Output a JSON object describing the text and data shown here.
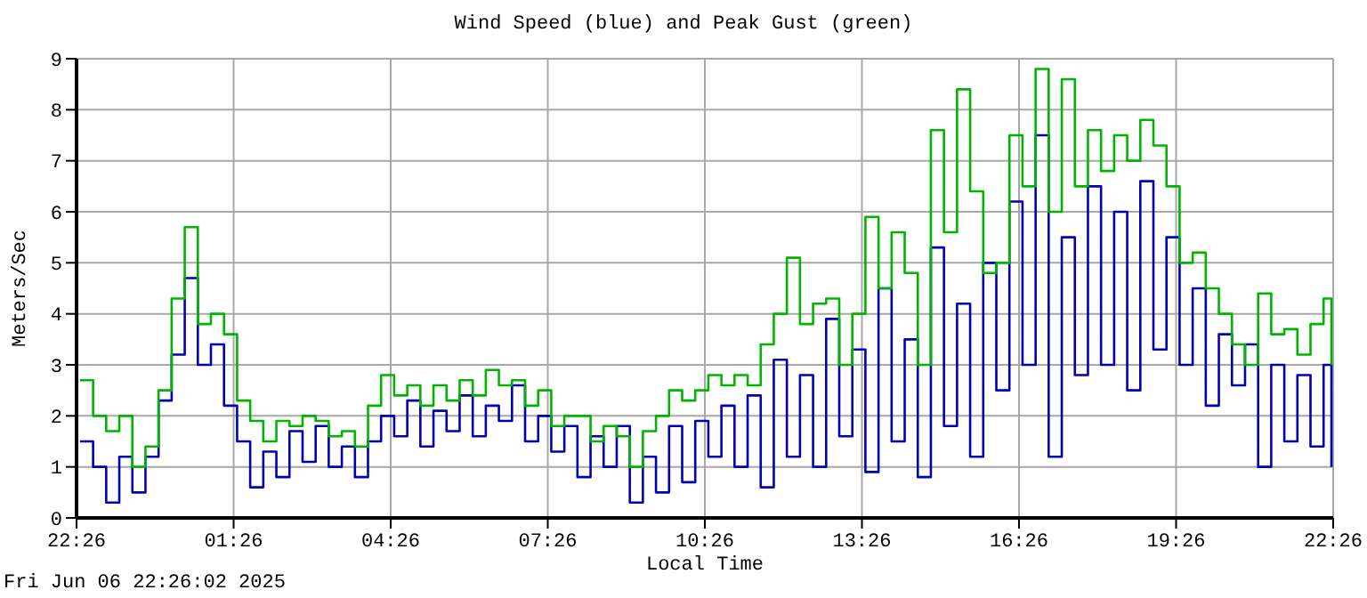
{
  "chart_data": {
    "type": "step",
    "title": "Wind Speed (blue) and Peak Gust (green)",
    "xlabel": "Local Time",
    "ylabel": "Meters/Sec",
    "annotations": [
      "Fri Jun 06 22:26:02 2025"
    ],
    "x": [
      "2025-06-05T22:30",
      "2025-06-05T22:45",
      "2025-06-05T23:00",
      "2025-06-05T23:15",
      "2025-06-05T23:30",
      "2025-06-05T23:45",
      "2025-06-06T00:00",
      "2025-06-06T00:15",
      "2025-06-06T00:30",
      "2025-06-06T00:45",
      "2025-06-06T01:00",
      "2025-06-06T01:15",
      "2025-06-06T01:30",
      "2025-06-06T01:45",
      "2025-06-06T02:00",
      "2025-06-06T02:15",
      "2025-06-06T02:30",
      "2025-06-06T02:45",
      "2025-06-06T03:00",
      "2025-06-06T03:15",
      "2025-06-06T03:30",
      "2025-06-06T03:45",
      "2025-06-06T04:00",
      "2025-06-06T04:15",
      "2025-06-06T04:30",
      "2025-06-06T04:45",
      "2025-06-06T05:00",
      "2025-06-06T05:15",
      "2025-06-06T05:30",
      "2025-06-06T05:45",
      "2025-06-06T06:00",
      "2025-06-06T06:15",
      "2025-06-06T06:30",
      "2025-06-06T06:45",
      "2025-06-06T07:00",
      "2025-06-06T07:15",
      "2025-06-06T07:30",
      "2025-06-06T07:45",
      "2025-06-06T08:00",
      "2025-06-06T08:15",
      "2025-06-06T08:30",
      "2025-06-06T08:45",
      "2025-06-06T09:00",
      "2025-06-06T09:15",
      "2025-06-06T09:30",
      "2025-06-06T09:45",
      "2025-06-06T10:00",
      "2025-06-06T10:15",
      "2025-06-06T10:30",
      "2025-06-06T10:45",
      "2025-06-06T11:00",
      "2025-06-06T11:15",
      "2025-06-06T11:30",
      "2025-06-06T11:45",
      "2025-06-06T12:00",
      "2025-06-06T12:15",
      "2025-06-06T12:30",
      "2025-06-06T12:45",
      "2025-06-06T13:00",
      "2025-06-06T13:15",
      "2025-06-06T13:30",
      "2025-06-06T13:45",
      "2025-06-06T14:00",
      "2025-06-06T14:15",
      "2025-06-06T14:30",
      "2025-06-06T14:45",
      "2025-06-06T15:00",
      "2025-06-06T15:15",
      "2025-06-06T15:30",
      "2025-06-06T15:45",
      "2025-06-06T16:00",
      "2025-06-06T16:15",
      "2025-06-06T16:30",
      "2025-06-06T16:45",
      "2025-06-06T17:00",
      "2025-06-06T17:15",
      "2025-06-06T17:30",
      "2025-06-06T17:45",
      "2025-06-06T18:00",
      "2025-06-06T18:15",
      "2025-06-06T18:30",
      "2025-06-06T18:45",
      "2025-06-06T19:00",
      "2025-06-06T19:15",
      "2025-06-06T19:30",
      "2025-06-06T19:45",
      "2025-06-06T20:00",
      "2025-06-06T20:15",
      "2025-06-06T20:30",
      "2025-06-06T20:45",
      "2025-06-06T21:00",
      "2025-06-06T21:15",
      "2025-06-06T21:30",
      "2025-06-06T21:45",
      "2025-06-06T22:00",
      "2025-06-06T22:15",
      "2025-06-06T22:24"
    ],
    "series": [
      {
        "color": "#0000b4",
        "values": [
          1.5,
          1.0,
          0.3,
          1.2,
          0.5,
          1.2,
          2.3,
          3.2,
          4.7,
          3.0,
          3.4,
          2.2,
          1.5,
          0.6,
          1.3,
          0.8,
          1.7,
          1.1,
          1.8,
          1.0,
          1.4,
          0.8,
          1.5,
          2.0,
          1.6,
          2.3,
          1.4,
          2.1,
          1.7,
          2.4,
          1.6,
          2.2,
          1.9,
          2.6,
          1.5,
          2.0,
          1.3,
          1.8,
          0.8,
          1.6,
          1.0,
          1.8,
          0.3,
          1.2,
          0.5,
          1.8,
          0.7,
          1.9,
          1.2,
          2.2,
          1.0,
          2.4,
          0.6,
          3.1,
          1.2,
          2.8,
          1.0,
          3.9,
          1.6,
          3.3,
          0.9,
          4.5,
          1.5,
          3.5,
          0.8,
          5.3,
          1.8,
          4.2,
          1.2,
          5.0,
          2.5,
          6.2,
          3.0,
          7.5,
          1.2,
          5.5,
          2.8,
          6.5,
          3.0,
          6.0,
          2.5,
          6.6,
          3.3,
          5.5,
          3.0,
          4.5,
          2.2,
          3.6,
          2.6,
          3.4,
          1.0,
          3.0,
          1.5,
          2.8,
          1.4,
          3.0,
          1.0
        ]
      },
      {
        "color": "#00b400",
        "values": [
          2.7,
          2.0,
          1.7,
          2.0,
          1.0,
          1.4,
          2.5,
          4.3,
          5.7,
          3.8,
          4.0,
          3.6,
          2.3,
          1.9,
          1.5,
          1.9,
          1.8,
          2.0,
          1.9,
          1.6,
          1.7,
          1.4,
          2.2,
          2.8,
          2.4,
          2.6,
          2.2,
          2.6,
          2.3,
          2.7,
          2.4,
          2.9,
          2.6,
          2.7,
          2.2,
          2.5,
          1.8,
          2.0,
          2.0,
          1.5,
          1.8,
          1.6,
          1.0,
          1.7,
          2.0,
          2.5,
          2.3,
          2.5,
          2.8,
          2.6,
          2.8,
          2.6,
          3.4,
          4.0,
          5.1,
          3.8,
          4.2,
          4.3,
          3.0,
          4.0,
          5.9,
          4.5,
          5.6,
          4.8,
          3.0,
          7.6,
          5.6,
          8.4,
          6.4,
          4.8,
          5.0,
          7.5,
          6.5,
          8.8,
          6.0,
          8.6,
          6.5,
          7.6,
          6.8,
          7.5,
          7.0,
          7.8,
          7.3,
          6.5,
          5.0,
          5.2,
          4.5,
          4.0,
          3.4,
          3.0,
          4.4,
          3.6,
          3.7,
          3.2,
          3.8,
          4.3,
          3.0
        ]
      }
    ],
    "xlim": [
      "2025-06-05T22:26",
      "2025-06-06T22:26"
    ],
    "xticks": [
      {
        "value": "2025-06-05T22:26",
        "label": "22:26"
      },
      {
        "value": "2025-06-06T01:26",
        "label": "01:26"
      },
      {
        "value": "2025-06-06T04:26",
        "label": "04:26"
      },
      {
        "value": "2025-06-06T07:26",
        "label": "07:26"
      },
      {
        "value": "2025-06-06T10:26",
        "label": "10:26"
      },
      {
        "value": "2025-06-06T13:26",
        "label": "13:26"
      },
      {
        "value": "2025-06-06T16:26",
        "label": "16:26"
      },
      {
        "value": "2025-06-06T19:26",
        "label": "19:26"
      },
      {
        "value": "2025-06-06T22:26",
        "label": "22:26"
      }
    ],
    "ylim": [
      0,
      9
    ],
    "yticks": [
      0,
      1,
      2,
      3,
      4,
      5,
      6,
      7,
      8,
      9
    ],
    "grid": true
  }
}
